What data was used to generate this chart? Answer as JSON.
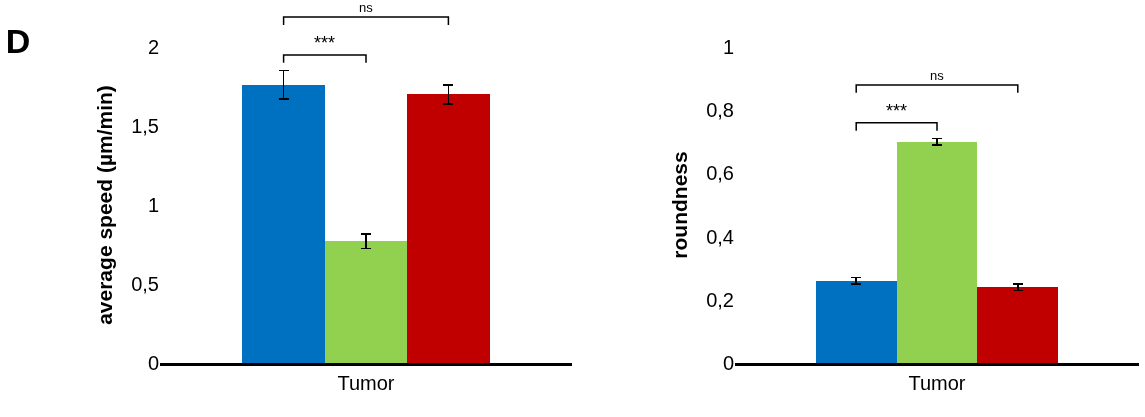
{
  "chart_data": [
    {
      "type": "bar",
      "title": "D",
      "ylabel": "average speed (µm/min)",
      "categories": [
        null,
        "Tumor",
        null
      ],
      "values": [
        1.76,
        0.77,
        1.7
      ],
      "colors": [
        "#0070c0",
        "#92d050",
        "#c00000"
      ],
      "errors": [
        0.09,
        0.045,
        0.06
      ],
      "ylim": [
        0,
        2
      ],
      "yticks": [
        0,
        {
          "value": 0.5,
          "label": "0,5"
        },
        1,
        {
          "value": 1.5,
          "label": "1,5"
        },
        2
      ],
      "annotations": [
        "***",
        "ns"
      ],
      "grid": false
    },
    {
      "type": "bar",
      "ylabel": "roundness",
      "categories": [
        null,
        "Tumor",
        null
      ],
      "values": [
        0.26,
        0.7,
        0.24
      ],
      "colors": [
        "#0070c0",
        "#92d050",
        "#c00000"
      ],
      "errors": [
        0.01,
        0.01,
        0.01
      ],
      "ylim": [
        0,
        1
      ],
      "yticks": [
        0,
        {
          "value": 0.2,
          "label": "0,2"
        },
        {
          "value": 0.4,
          "label": "0,4"
        },
        {
          "value": 0.6,
          "label": "0,6"
        },
        {
          "value": 0.8,
          "label": "0,8"
        },
        1
      ],
      "annotations": [
        "***",
        "ns"
      ],
      "grid": false
    }
  ]
}
